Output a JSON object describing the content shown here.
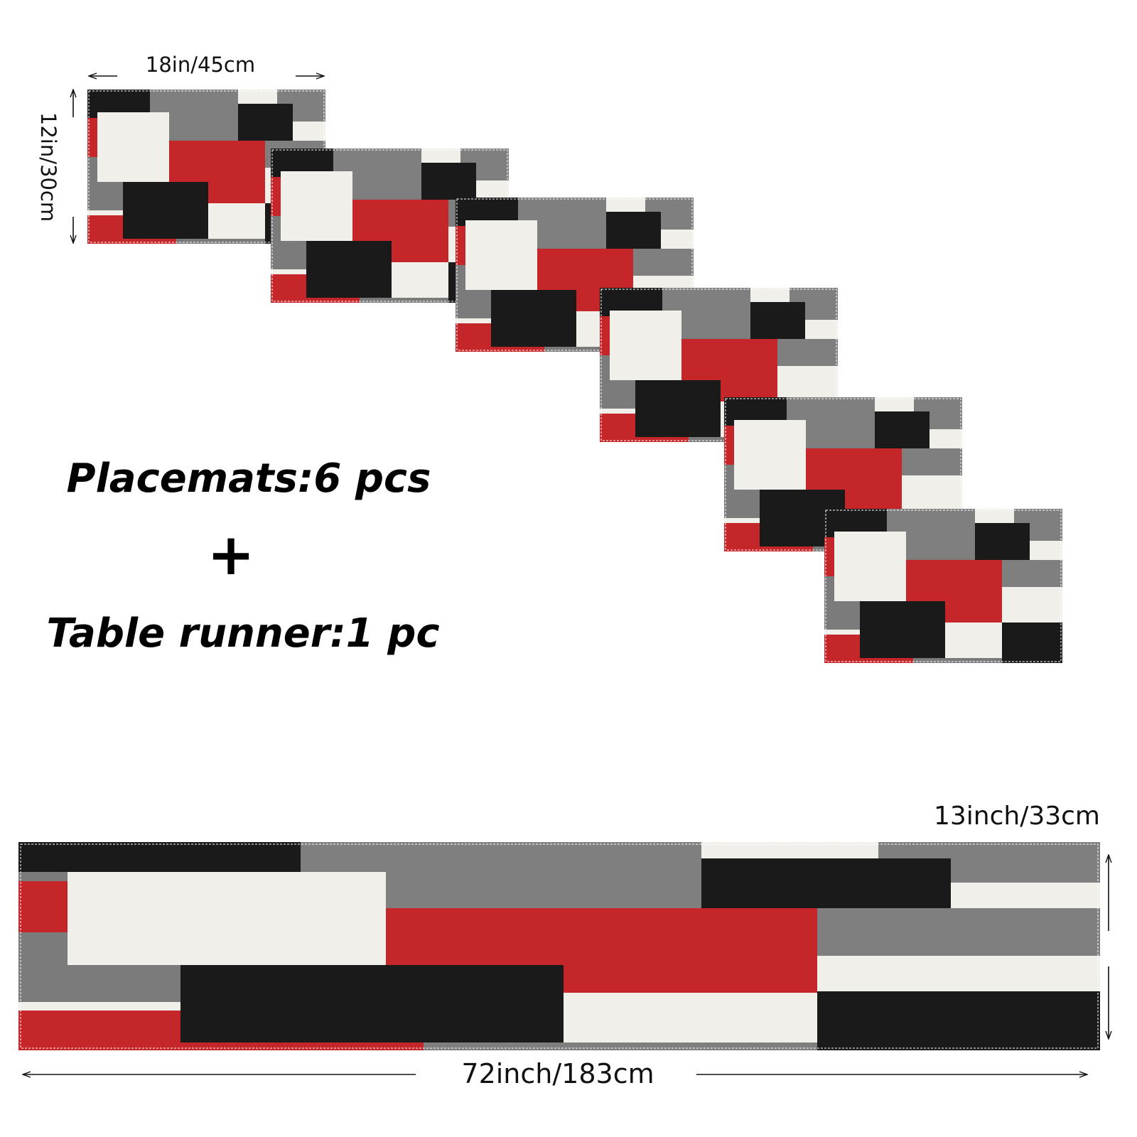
{
  "placemat_size": {
    "width": "18in/45cm",
    "height": "12in/30cm"
  },
  "caption": {
    "placemats": "Placemats:6 pcs",
    "plus": "+",
    "runner": "Table runner:1 pc"
  },
  "runner_size": {
    "height": "13inch/33cm",
    "width": "72inch/183cm"
  }
}
